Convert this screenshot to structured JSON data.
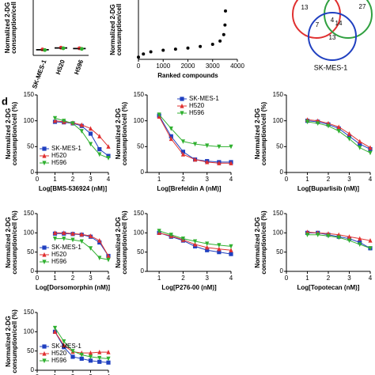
{
  "panel_label": "d",
  "venn": {
    "regions": [
      13,
      27,
      7,
      4,
      14,
      13
    ],
    "label": "SK-MES-1",
    "colors": [
      "#e03030",
      "#30a040",
      "#2040c0"
    ]
  },
  "chart_data": [
    {
      "type": "strip",
      "ylabel": [
        "Normalized 2-DG",
        "consumption/cell"
      ],
      "categories": [
        "SK-MES-1",
        "H520",
        "H596"
      ],
      "ylim": [
        0,
        120
      ],
      "series": [
        {
          "color": "#2040c0",
          "values": [
            102,
            102,
            102
          ]
        },
        {
          "color": "#e03030",
          "values": [
            10,
            13,
            12
          ]
        },
        {
          "color": "#30b030",
          "values": [
            9,
            12,
            11
          ]
        }
      ]
    },
    {
      "type": "scatter",
      "ylabel": [
        "Normalized 2-DG",
        "consumption/cell"
      ],
      "xlabel": "Ranked compounds",
      "color": "#000000",
      "x": [
        0,
        200,
        500,
        1000,
        1500,
        2000,
        2500,
        3000,
        3300,
        3450,
        3500,
        3520,
        3550
      ],
      "values": [
        20,
        50,
        70,
        85,
        95,
        105,
        120,
        140,
        170,
        230,
        320,
        450,
        650
      ],
      "xlim": [
        0,
        4000
      ],
      "xticks": [
        0,
        1000,
        2000,
        3000,
        4000
      ],
      "ylim": [
        0,
        700
      ],
      "yticks": [
        600
      ]
    },
    {
      "type": "dose",
      "xlabel": "Log[BMS-536924 (nM)]",
      "ylabel": [
        "Normalized 2-DG",
        "consumption/cell (%)"
      ],
      "legend": "lower left",
      "x": [
        1,
        1.5,
        2,
        2.5,
        3,
        3.5,
        4
      ],
      "xlim": [
        0,
        4
      ],
      "xticks": [
        0,
        1,
        2,
        3,
        4
      ],
      "ylim": [
        0,
        150
      ],
      "yticks": [
        0,
        50,
        100,
        150
      ],
      "series": [
        {
          "name": "SK-MES-1",
          "color": "#2040c0",
          "values": [
            98,
            97,
            95,
            90,
            75,
            45,
            32
          ]
        },
        {
          "name": "H520",
          "color": "#e03030",
          "values": [
            100,
            98,
            96,
            92,
            85,
            70,
            50
          ]
        },
        {
          "name": "H596",
          "color": "#30b030",
          "values": [
            105,
            100,
            95,
            80,
            55,
            35,
            28
          ]
        }
      ]
    },
    {
      "type": "dose",
      "xlabel": "Log[Brefeldin A (nM)]",
      "ylabel": [
        "Normalized 2-DG",
        "consumption/cell (%)"
      ],
      "legend": "upper right",
      "x": [
        1,
        1.5,
        2,
        2.5,
        3,
        3.5,
        4
      ],
      "xlim": [
        0.5,
        4
      ],
      "xticks": [
        1,
        2,
        3,
        4
      ],
      "ylim": [
        0,
        150
      ],
      "yticks": [
        0,
        50,
        100,
        150
      ],
      "series": [
        {
          "name": "SK-MES-1",
          "color": "#2040c0",
          "values": [
            110,
            70,
            40,
            25,
            22,
            20,
            20
          ]
        },
        {
          "name": "H520",
          "color": "#e03030",
          "values": [
            108,
            65,
            35,
            25,
            20,
            18,
            18
          ]
        },
        {
          "name": "H596",
          "color": "#30b030",
          "values": [
            112,
            85,
            60,
            55,
            52,
            50,
            50
          ]
        }
      ]
    },
    {
      "type": "dose",
      "xlabel": "Log[Buparlisib (nM)]",
      "ylabel": [
        "Normalized 2-DG",
        "consumption/cell (%)"
      ],
      "legend": "none",
      "x": [
        1,
        1.5,
        2,
        2.5,
        3,
        3.5,
        4
      ],
      "xlim": [
        0,
        4
      ],
      "xticks": [
        0,
        1,
        2,
        3,
        4
      ],
      "ylim": [
        0,
        150
      ],
      "yticks": [
        0,
        50,
        100,
        150
      ],
      "series": [
        {
          "name": "SK-MES-1",
          "color": "#2040c0",
          "values": [
            100,
            98,
            93,
            85,
            70,
            55,
            45
          ]
        },
        {
          "name": "H520",
          "color": "#e03030",
          "values": [
            102,
            100,
            95,
            88,
            75,
            60,
            48
          ]
        },
        {
          "name": "H596",
          "color": "#30b030",
          "values": [
            98,
            95,
            90,
            80,
            65,
            48,
            38
          ]
        }
      ]
    },
    {
      "type": "dose",
      "xlabel": "Log[Dorsomorphin (nM)]",
      "ylabel": [
        "Normalized 2-DG",
        "consumption/cell (%)"
      ],
      "legend": "lower left",
      "x": [
        1,
        1.5,
        2,
        2.5,
        3,
        3.5,
        4
      ],
      "xlim": [
        0,
        4
      ],
      "xticks": [
        0,
        1,
        2,
        3,
        4
      ],
      "ylim": [
        0,
        150
      ],
      "yticks": [
        0,
        50,
        100,
        150
      ],
      "series": [
        {
          "name": "SK-MES-1",
          "color": "#2040c0",
          "values": [
            98,
            98,
            97,
            95,
            90,
            75,
            40
          ]
        },
        {
          "name": "H520",
          "color": "#e03030",
          "values": [
            100,
            100,
            98,
            96,
            92,
            80,
            40
          ]
        },
        {
          "name": "H596",
          "color": "#30b030",
          "values": [
            85,
            85,
            82,
            78,
            60,
            35,
            30
          ]
        }
      ]
    },
    {
      "type": "dose",
      "xlabel": "Log[P276-00 (nM)]",
      "ylabel": [
        "Normalized 2-DG",
        "consumption/cell (%)"
      ],
      "legend": "none",
      "x": [
        1,
        1.5,
        2,
        2.5,
        3,
        3.5,
        4
      ],
      "xlim": [
        0.5,
        4
      ],
      "xticks": [
        1,
        2,
        3,
        4
      ],
      "ylim": [
        0,
        150
      ],
      "yticks": [
        0,
        50,
        100,
        150
      ],
      "series": [
        {
          "name": "SK-MES-1",
          "color": "#2040c0",
          "values": [
            100,
            90,
            80,
            65,
            55,
            50,
            45
          ]
        },
        {
          "name": "H520",
          "color": "#e03030",
          "values": [
            100,
            92,
            82,
            70,
            62,
            58,
            55
          ]
        },
        {
          "name": "H596",
          "color": "#30b030",
          "values": [
            105,
            95,
            85,
            78,
            72,
            68,
            65
          ]
        }
      ]
    },
    {
      "type": "dose",
      "xlabel": "Log[Topotecan (nM)]",
      "ylabel": [
        "Normalized 2-DG",
        "consumption/cell (%)"
      ],
      "legend": "none",
      "x": [
        1,
        1.5,
        2,
        2.5,
        3,
        3.5,
        4
      ],
      "xlim": [
        0,
        4
      ],
      "xticks": [
        0,
        1,
        2,
        3,
        4
      ],
      "ylim": [
        0,
        150
      ],
      "yticks": [
        0,
        50,
        100,
        150
      ],
      "series": [
        {
          "name": "SK-MES-1",
          "color": "#2040c0",
          "values": [
            100,
            100,
            95,
            90,
            85,
            75,
            60
          ]
        },
        {
          "name": "H520",
          "color": "#e03030",
          "values": [
            102,
            100,
            98,
            95,
            90,
            85,
            80
          ]
        },
        {
          "name": "H596",
          "color": "#30b030",
          "values": [
            95,
            95,
            92,
            88,
            80,
            70,
            60
          ]
        }
      ]
    },
    {
      "type": "dose",
      "ylabel": [
        "Normalized 2-DG",
        "consumption/cell (%)"
      ],
      "legend": "lower left",
      "x": [
        1,
        1.5,
        2,
        2.5,
        3,
        3.5,
        4
      ],
      "xlim": [
        0,
        4
      ],
      "xticks": [
        0,
        1,
        2,
        3,
        4
      ],
      "ylim": [
        0,
        150
      ],
      "yticks": [
        0,
        50,
        100,
        150
      ],
      "series": [
        {
          "name": "SK-MES-1",
          "color": "#2040c0",
          "values": [
            100,
            60,
            35,
            30,
            25,
            22,
            20
          ]
        },
        {
          "name": "H520",
          "color": "#e03030",
          "values": [
            100,
            65,
            48,
            45,
            45,
            47,
            47
          ]
        },
        {
          "name": "H596",
          "color": "#30b030",
          "values": [
            110,
            75,
            50,
            40,
            35,
            32,
            30
          ]
        }
      ]
    }
  ]
}
